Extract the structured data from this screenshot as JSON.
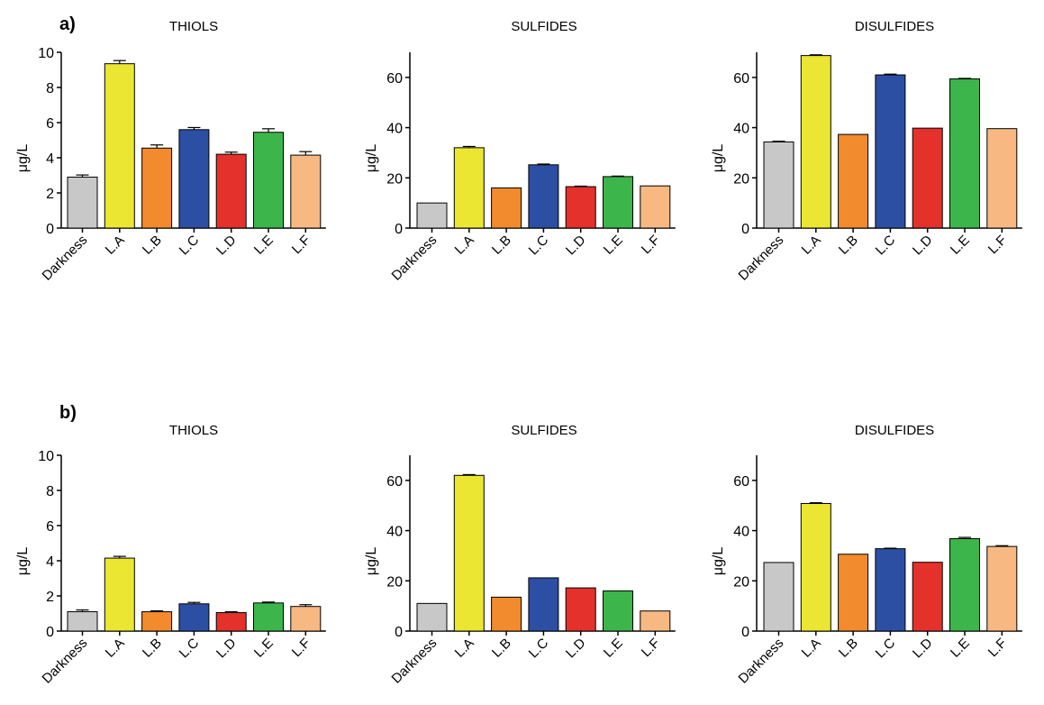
{
  "panels": [
    {
      "tag": "a)"
    },
    {
      "tag": "b)"
    }
  ],
  "colors": {
    "Darkness": "#c8c8c8",
    "L.A": "#ebe632",
    "L.B": "#f28a2e",
    "L.C": "#2c4fa3",
    "L.D": "#e4312b",
    "L.E": "#3cb54a",
    "L.F": "#f7b882"
  },
  "chart_data": [
    {
      "id": "a-thiols",
      "panel": "a)",
      "type": "bar",
      "title": "THIOLS",
      "ylabel": "μg/L",
      "ylim": [
        0,
        10
      ],
      "yticks": [
        0,
        2,
        4,
        6,
        8,
        10
      ],
      "categories": [
        "Darkness",
        "L.A",
        "L.B",
        "L.C",
        "L.D",
        "L.E",
        "L.F"
      ],
      "values": [
        2.9,
        9.35,
        4.55,
        5.6,
        4.2,
        5.45,
        4.15
      ],
      "errors": [
        0.12,
        0.18,
        0.18,
        0.12,
        0.12,
        0.2,
        0.2
      ]
    },
    {
      "id": "a-sulfides",
      "panel": "a)",
      "type": "bar",
      "title": "SULFIDES",
      "ylabel": "μg/L",
      "ylim": [
        0,
        70
      ],
      "yticks": [
        0,
        20,
        40,
        60
      ],
      "categories": [
        "Darkness",
        "L.A",
        "L.B",
        "L.C",
        "L.D",
        "L.E",
        "L.F"
      ],
      "values": [
        10,
        32,
        16,
        25.2,
        16.5,
        20.5,
        16.8
      ],
      "errors": [
        0,
        0.5,
        0,
        0.3,
        0.2,
        0.2,
        0
      ]
    },
    {
      "id": "a-disulfides",
      "panel": "a)",
      "type": "bar",
      "title": "DISULFIDES",
      "ylabel": "μg/L",
      "ylim": [
        0,
        70
      ],
      "yticks": [
        0,
        20,
        40,
        60
      ],
      "categories": [
        "Darkness",
        "L.A",
        "L.B",
        "L.C",
        "L.D",
        "L.E",
        "L.F"
      ],
      "values": [
        34.3,
        68.7,
        37.3,
        61,
        39.8,
        59.4,
        39.6
      ],
      "errors": [
        0.3,
        0.3,
        0,
        0.3,
        0,
        0.2,
        0
      ]
    },
    {
      "id": "b-thiols",
      "panel": "b)",
      "type": "bar",
      "title": "THIOLS",
      "ylabel": "μg/L",
      "ylim": [
        0,
        10
      ],
      "yticks": [
        0,
        2,
        4,
        6,
        8,
        10
      ],
      "categories": [
        "Darkness",
        "L.A",
        "L.B",
        "L.C",
        "L.D",
        "L.E",
        "L.F"
      ],
      "values": [
        1.1,
        4.15,
        1.1,
        1.55,
        1.05,
        1.6,
        1.4
      ],
      "errors": [
        0.1,
        0.1,
        0.05,
        0.08,
        0.05,
        0.05,
        0.1
      ]
    },
    {
      "id": "b-sulfides",
      "panel": "b)",
      "type": "bar",
      "title": "SULFIDES",
      "ylabel": "μg/L",
      "ylim": [
        0,
        70
      ],
      "yticks": [
        0,
        20,
        40,
        60
      ],
      "categories": [
        "Darkness",
        "L.A",
        "L.B",
        "L.C",
        "L.D",
        "L.E",
        "L.F"
      ],
      "values": [
        11,
        62,
        13.5,
        21.2,
        17.2,
        16,
        8
      ],
      "errors": [
        0,
        0.3,
        0,
        0,
        0,
        0,
        0
      ]
    },
    {
      "id": "b-disulfides",
      "panel": "b)",
      "type": "bar",
      "title": "DISULFIDES",
      "ylabel": "μg/L",
      "ylim": [
        0,
        70
      ],
      "yticks": [
        0,
        20,
        40,
        60
      ],
      "categories": [
        "Darkness",
        "L.A",
        "L.B",
        "L.C",
        "L.D",
        "L.E",
        "L.F"
      ],
      "values": [
        27.3,
        50.8,
        30.6,
        32.8,
        27.4,
        36.8,
        33.7
      ],
      "errors": [
        0,
        0.3,
        0,
        0.2,
        0,
        0.5,
        0.3
      ]
    }
  ]
}
